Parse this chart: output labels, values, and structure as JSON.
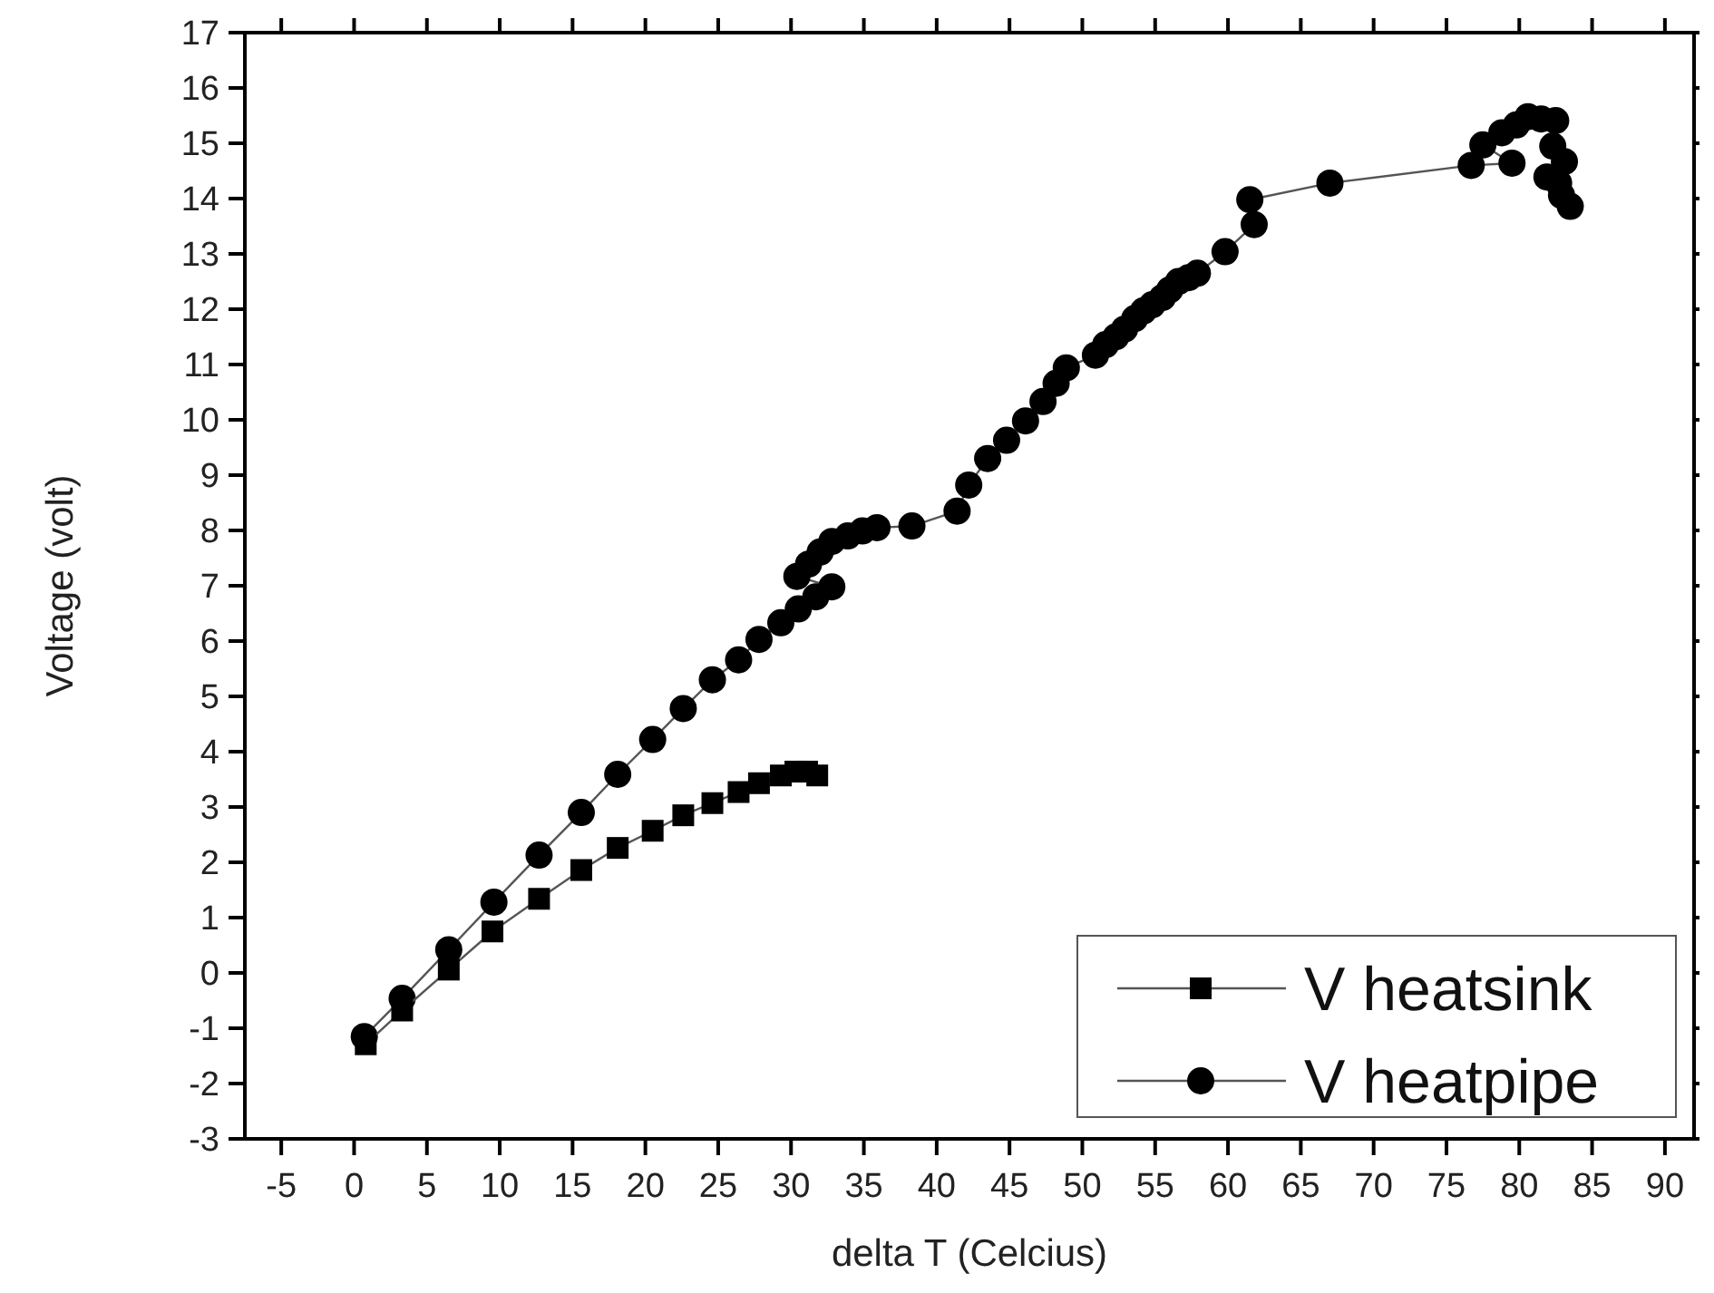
{
  "chart_data": {
    "type": "line",
    "xlabel": "delta T (Celcius)",
    "ylabel": "Voltage (volt)",
    "xlim": [
      -7.5,
      92
    ],
    "ylim": [
      -3,
      17
    ],
    "xticks": [
      -5,
      0,
      5,
      10,
      15,
      20,
      25,
      30,
      35,
      40,
      45,
      50,
      55,
      60,
      65,
      70,
      75,
      80,
      85,
      90
    ],
    "yticks": [
      -3,
      -2,
      -1,
      0,
      1,
      2,
      3,
      4,
      5,
      6,
      7,
      8,
      9,
      10,
      11,
      12,
      13,
      14,
      15,
      16,
      17
    ],
    "grid": false,
    "legend": "bottom right",
    "series": [
      {
        "name": "V heatsink",
        "color": "#000000",
        "marker": "square",
        "x": [
          0.8,
          3.3,
          6.5,
          9.5,
          12.7,
          15.6,
          18.1,
          20.5,
          22.6,
          24.6,
          26.4,
          27.8,
          29.3,
          30.3,
          31.1,
          31.8
        ],
        "values": [
          -1.29,
          -0.68,
          0.06,
          0.75,
          1.34,
          1.86,
          2.26,
          2.57,
          2.85,
          3.07,
          3.27,
          3.43,
          3.57,
          3.64,
          3.64,
          3.57
        ]
      },
      {
        "name": "V heatpipe",
        "color": "#000000",
        "marker": "circle",
        "x": [
          0.7,
          3.3,
          6.5,
          9.6,
          12.7,
          15.6,
          18.1,
          20.5,
          22.6,
          24.6,
          26.4,
          27.8,
          29.3,
          30.5,
          31.7,
          32.8,
          30.4,
          31.2,
          32.0,
          32.8,
          33.9,
          34.9,
          35.9,
          38.3,
          41.4,
          42.2,
          43.5,
          44.8,
          46.1,
          47.3,
          48.2,
          48.9,
          50.9,
          51.6,
          52.3,
          52.9,
          53.6,
          54.2,
          54.8,
          55.5,
          56.0,
          56.6,
          57.3,
          57.9,
          59.8,
          61.8,
          61.5,
          67.0,
          76.7,
          79.5,
          77.5,
          78.8,
          79.8,
          80.6,
          81.5,
          82.5,
          82.3,
          83.1,
          81.9,
          82.7,
          82.9,
          83.5
        ],
        "values": [
          -1.15,
          -0.46,
          0.42,
          1.28,
          2.13,
          2.9,
          3.59,
          4.22,
          4.78,
          5.3,
          5.66,
          6.03,
          6.33,
          6.58,
          6.8,
          6.98,
          7.17,
          7.39,
          7.61,
          7.8,
          7.9,
          7.99,
          8.05,
          8.08,
          8.35,
          8.82,
          9.3,
          9.63,
          9.98,
          10.33,
          10.66,
          10.94,
          11.17,
          11.36,
          11.5,
          11.64,
          11.83,
          11.97,
          12.08,
          12.21,
          12.35,
          12.5,
          12.57,
          12.65,
          13.04,
          13.53,
          13.98,
          14.28,
          14.6,
          14.64,
          14.97,
          15.19,
          15.33,
          15.48,
          15.44,
          15.41,
          14.95,
          14.67,
          14.39,
          14.28,
          14.06,
          13.86
        ]
      }
    ]
  }
}
